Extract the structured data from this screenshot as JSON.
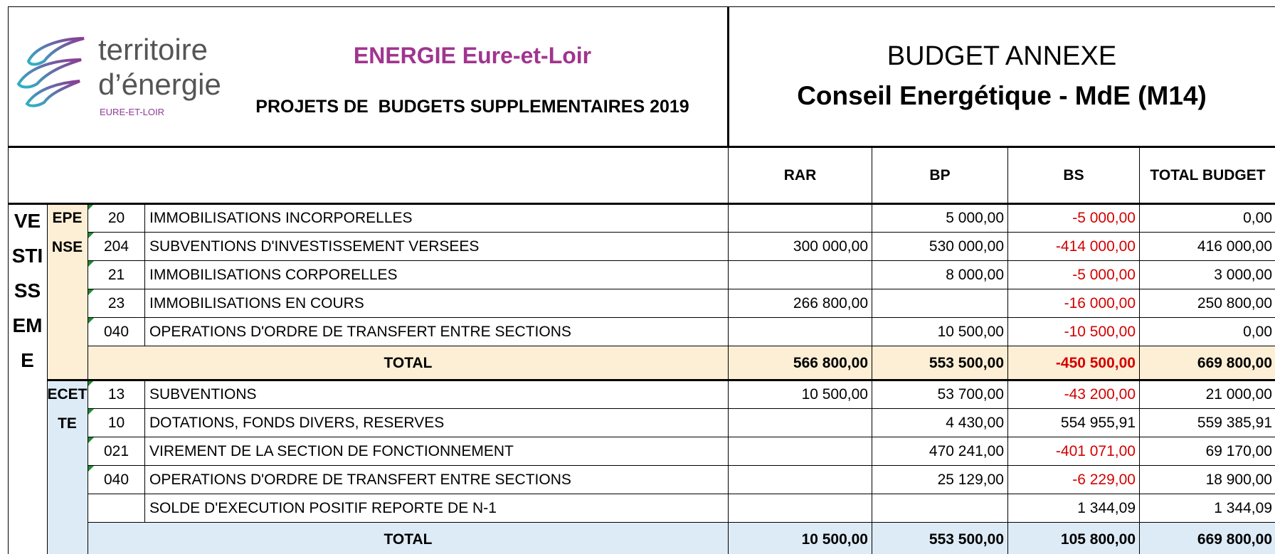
{
  "header": {
    "logo": {
      "line1": "territoire",
      "line2": "d’énergie",
      "line3": "EURE-ET-LOIR"
    },
    "org": "ENERGIE Eure-et-Loir",
    "subtitle": "PROJETS DE  BUDGETS SUPPLEMENTAIRES 2019",
    "budget_title": "BUDGET ANNEXE",
    "budget_name": "Conseil Energétique - MdE (M14)"
  },
  "table": {
    "columns": [
      "RAR",
      "BP",
      "BS",
      "TOTAL BUDGET"
    ],
    "side_label": "VESTISSEME",
    "sections": [
      {
        "label": "EPENSE",
        "fill": "#fcefd5",
        "rows": [
          {
            "code": "20",
            "label": "IMMOBILISATIONS INCORPORELLES",
            "values": [
              null,
              "5 000,00",
              "-5 000,00",
              "0,00"
            ]
          },
          {
            "code": "204",
            "label": "SUBVENTIONS D'INVESTISSEMENT VERSEES",
            "values": [
              "300 000,00",
              "530 000,00",
              "-414 000,00",
              "416 000,00"
            ]
          },
          {
            "code": "21",
            "label": "IMMOBILISATIONS CORPORELLES",
            "values": [
              null,
              "8 000,00",
              "-5 000,00",
              "3 000,00"
            ]
          },
          {
            "code": "23",
            "label": "IMMOBILISATIONS EN COURS",
            "values": [
              "266 800,00",
              null,
              "-16 000,00",
              "250 800,00"
            ]
          },
          {
            "code": "040",
            "label": "OPERATIONS D'ORDRE DE TRANSFERT ENTRE SECTIONS",
            "values": [
              null,
              "10 500,00",
              "-10 500,00",
              "0,00"
            ]
          }
        ],
        "total": {
          "label": "TOTAL",
          "values": [
            "566 800,00",
            "553 500,00",
            "-450 500,00",
            "669 800,00"
          ]
        }
      },
      {
        "label": "ECETTE",
        "fill": "#ddebf7",
        "rows": [
          {
            "code": "13",
            "label": "SUBVENTIONS",
            "values": [
              "10 500,00",
              "53 700,00",
              "-43 200,00",
              "21 000,00"
            ]
          },
          {
            "code": "10",
            "label": "DOTATIONS, FONDS DIVERS, RESERVES",
            "values": [
              null,
              "4 430,00",
              "554 955,91",
              "559 385,91"
            ]
          },
          {
            "code": "021",
            "label": "VIREMENT DE LA SECTION DE FONCTIONNEMENT",
            "values": [
              null,
              "470 241,00",
              "-401 071,00",
              "69 170,00"
            ]
          },
          {
            "code": "040",
            "label": "OPERATIONS D'ORDRE DE TRANSFERT ENTRE SECTIONS",
            "values": [
              null,
              "25 129,00",
              "-6 229,00",
              "18 900,00"
            ]
          },
          {
            "label": "SOLDE D'EXECUTION POSITIF REPORTE DE N-1",
            "values": [
              null,
              null,
              "1 344,09",
              "1 344,09"
            ]
          }
        ],
        "total": {
          "label": "TOTAL",
          "values": [
            "10 500,00",
            "553 500,00",
            "105 800,00",
            "669 800,00"
          ]
        }
      }
    ]
  }
}
